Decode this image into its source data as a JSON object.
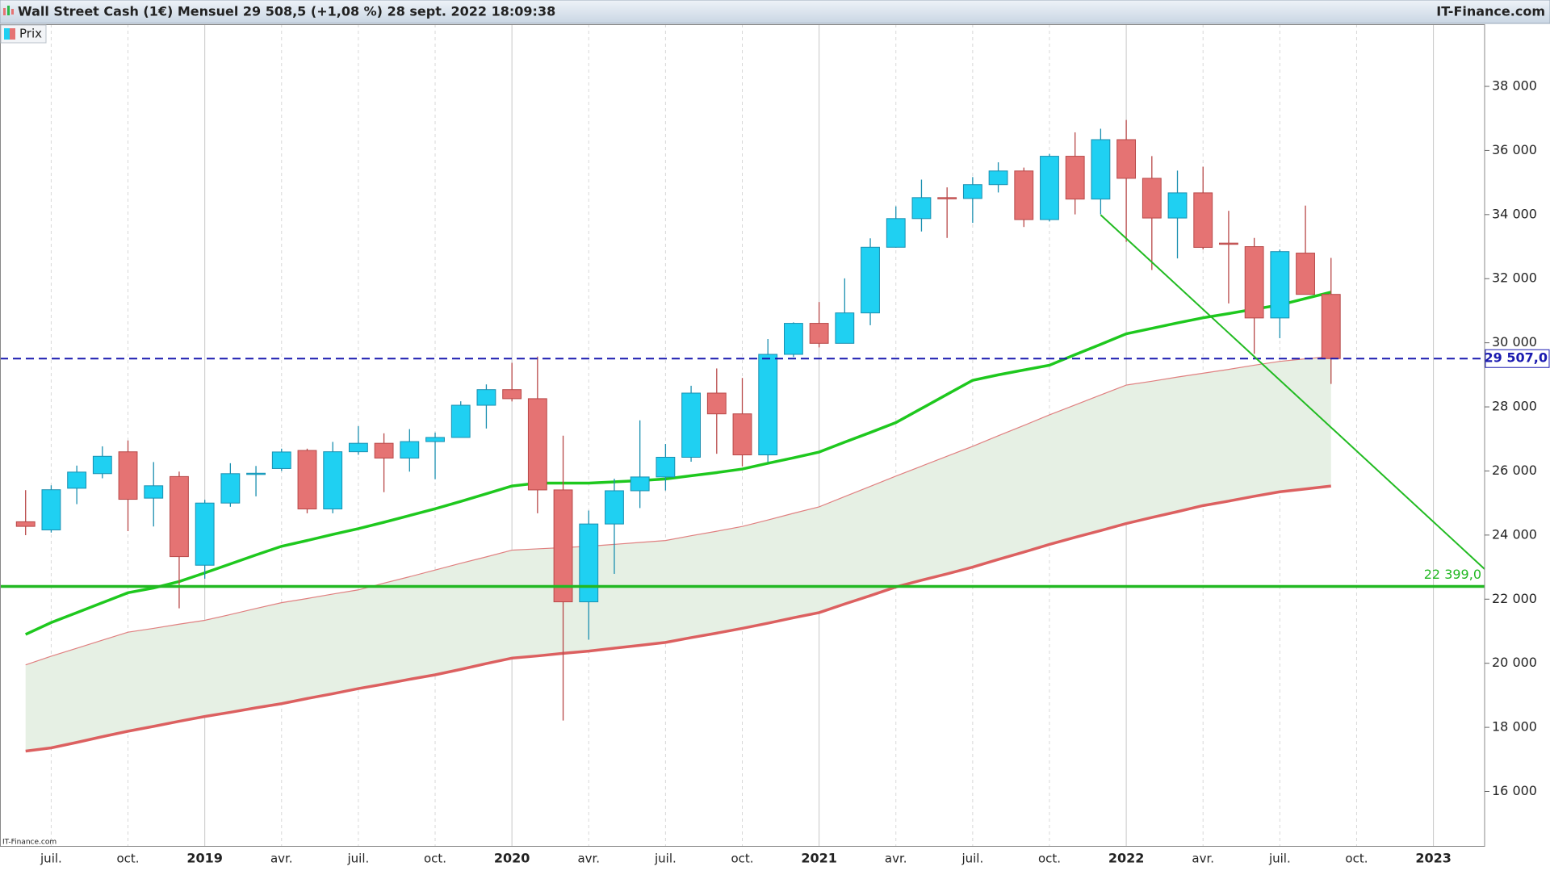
{
  "chart_data": {
    "type": "candlestick",
    "title": "Wall Street Cash (1€) Mensuel 29 508,5 (+1,08 %) 28 sept. 2022 18:09:38",
    "source": "IT-Finance.com",
    "watermark": "IT-Finance.com",
    "legend": "Prix",
    "up_color": "#1fd0f2",
    "up_border": "#1a8fb0",
    "down_color": "#e57373",
    "down_border": "#b84848",
    "x": [
      "2018-06",
      "2018-07",
      "2018-08",
      "2018-09",
      "2018-10",
      "2018-11",
      "2018-12",
      "2019-01",
      "2019-02",
      "2019-03",
      "2019-04",
      "2019-05",
      "2019-06",
      "2019-07",
      "2019-08",
      "2019-09",
      "2019-10",
      "2019-11",
      "2019-12",
      "2020-01",
      "2020-02",
      "2020-03",
      "2020-04",
      "2020-05",
      "2020-06",
      "2020-07",
      "2020-08",
      "2020-09",
      "2020-10",
      "2020-11",
      "2020-12",
      "2021-01",
      "2021-02",
      "2021-03",
      "2021-04",
      "2021-05",
      "2021-06",
      "2021-07",
      "2021-08",
      "2021-09",
      "2021-10",
      "2021-11",
      "2021-12",
      "2022-01",
      "2022-02",
      "2022-03",
      "2022-04",
      "2022-05",
      "2022-06",
      "2022-07",
      "2022-08",
      "2022-09"
    ],
    "open": [
      24415,
      24161,
      25461,
      25917,
      26598,
      25152,
      25826,
      23059,
      24999,
      25916,
      26076,
      26640,
      24815,
      26600,
      26864,
      26403,
      26917,
      27046,
      28051,
      28538,
      28256,
      25409,
      21917,
      24346,
      25383,
      25813,
      26428,
      28430,
      27782,
      26502,
      29639,
      30606,
      29983,
      30932,
      32981,
      33875,
      34529,
      34503,
      34935,
      35361,
      33844,
      35820,
      34484,
      36338,
      35132,
      33893,
      34678,
      33110,
      33000,
      30775,
      32798,
      31510
    ],
    "high": [
      25402,
      25552,
      26168,
      26769,
      26952,
      26278,
      25980,
      25100,
      26242,
      26156,
      26696,
      26696,
      26907,
      27398,
      27175,
      27306,
      27199,
      28175,
      28701,
      29374,
      29568,
      27102,
      24764,
      25758,
      27580,
      26841,
      28659,
      29199,
      28902,
      30116,
      30637,
      31272,
      32010,
      33259,
      34257,
      35091,
      34849,
      35171,
      35631,
      35467,
      35892,
      36566,
      36679,
      36953,
      35824,
      35372,
      35492,
      34117,
      33272,
      32910,
      34281,
      32650
    ],
    "low": [
      23997,
      24078,
      24965,
      25772,
      24123,
      24268,
      21713,
      22638,
      24883,
      25208,
      25999,
      24680,
      24680,
      26504,
      25339,
      25979,
      25743,
      27046,
      27325,
      28170,
      24681,
      18214,
      20735,
      22789,
      24843,
      25391,
      26289,
      26537,
      26143,
      26277,
      29556,
      29856,
      29983,
      30548,
      32967,
      33473,
      33271,
      33741,
      34690,
      33613,
      33785,
      34006,
      34006,
      33150,
      32272,
      32632,
      32913,
      31228,
      29653,
      30143,
      31530,
      28715
    ],
    "close": [
      24271,
      25415,
      25965,
      26458,
      25116,
      25538,
      23327,
      24999,
      25916,
      25929,
      26593,
      24815,
      26600,
      26864,
      26403,
      26917,
      27046,
      28051,
      28538,
      28256,
      25409,
      21917,
      24346,
      25383,
      25813,
      26428,
      28430,
      27782,
      26502,
      29639,
      30606,
      29983,
      30932,
      32981,
      33875,
      34529,
      34503,
      34935,
      35361,
      33844,
      35820,
      34484,
      36338,
      35132,
      33893,
      34678,
      32977,
      33090,
      30775,
      32845,
      31510,
      29507
    ],
    "moving_average": {
      "color": "#1ec81e",
      "width": 3.5,
      "values": [
        20900,
        21270,
        21580,
        21890,
        22200,
        22350,
        22550,
        22820,
        23100,
        23380,
        23650,
        23830,
        24020,
        24200,
        24400,
        24610,
        24820,
        25050,
        25290,
        25530,
        25620,
        25620,
        25620,
        25660,
        25700,
        25750,
        25850,
        25950,
        26060,
        26240,
        26410,
        26590,
        26900,
        27200,
        27510,
        27950,
        28390,
        28830,
        29000,
        29150,
        29300,
        29630,
        29950,
        30280,
        30450,
        30620,
        30780,
        30910,
        31050,
        31180,
        31380,
        31580
      ]
    },
    "envelope": {
      "color": "#e6f0e4",
      "upper": {
        "color": "#e08080",
        "width": 1.2,
        "values": [
          19950,
          20220,
          20470,
          20720,
          20970,
          21090,
          21220,
          21340,
          21520,
          21710,
          21890,
          22020,
          22160,
          22290,
          22500,
          22700,
          22910,
          23120,
          23320,
          23530,
          23570,
          23610,
          23650,
          23710,
          23770,
          23830,
          23980,
          24120,
          24270,
          24470,
          24680,
          24880,
          25200,
          25520,
          25840,
          26150,
          26460,
          26770,
          27100,
          27420,
          27750,
          28060,
          28370,
          28680,
          28800,
          28930,
          29050,
          29170,
          29300,
          29420,
          29500,
          29570
        ]
      },
      "lower": {
        "color": "#dc6060",
        "width": 3.5,
        "values": [
          17260,
          17360,
          17530,
          17710,
          17880,
          18030,
          18190,
          18340,
          18470,
          18610,
          18740,
          18900,
          19050,
          19210,
          19350,
          19500,
          19640,
          19810,
          19990,
          20160,
          20230,
          20310,
          20380,
          20470,
          20560,
          20650,
          20800,
          20940,
          21090,
          21250,
          21420,
          21580,
          21850,
          22110,
          22380,
          22590,
          22790,
          23000,
          23240,
          23470,
          23710,
          23930,
          24140,
          24360,
          24550,
          24730,
          24920,
          25060,
          25210,
          25350,
          25440,
          25530
        ]
      }
    },
    "trendline": {
      "color": "#22bb22",
      "x": [
        "2021-12",
        "2023-03"
      ],
      "values": [
        33990,
        22940
      ]
    },
    "levels": [
      {
        "value": 29507,
        "label": "29 507,0",
        "color": "#1a1ab0",
        "style": "dashed"
      },
      {
        "value": 22399,
        "label": "22 399,0",
        "color": "#22b822",
        "style": "solid"
      }
    ],
    "xlim": [
      "2018-05",
      "2023-03"
    ],
    "xticks": [
      {
        "value": "2018-07",
        "label": "juil."
      },
      {
        "value": "2018-10",
        "label": "oct."
      },
      {
        "value": "2019-01",
        "label": "2019"
      },
      {
        "value": "2019-04",
        "label": "avr."
      },
      {
        "value": "2019-07",
        "label": "juil."
      },
      {
        "value": "2019-10",
        "label": "oct."
      },
      {
        "value": "2020-01",
        "label": "2020"
      },
      {
        "value": "2020-04",
        "label": "avr."
      },
      {
        "value": "2020-07",
        "label": "juil."
      },
      {
        "value": "2020-10",
        "label": "oct."
      },
      {
        "value": "2021-01",
        "label": "2021"
      },
      {
        "value": "2021-04",
        "label": "avr."
      },
      {
        "value": "2021-07",
        "label": "juil."
      },
      {
        "value": "2021-10",
        "label": "oct."
      },
      {
        "value": "2022-01",
        "label": "2022"
      },
      {
        "value": "2022-04",
        "label": "avr."
      },
      {
        "value": "2022-07",
        "label": "juil."
      },
      {
        "value": "2022-10",
        "label": "oct."
      },
      {
        "value": "2023-01",
        "label": "2023"
      }
    ],
    "ylim": [
      14300,
      39940
    ],
    "yticks": [
      {
        "value": 16000,
        "label": "16 000"
      },
      {
        "value": 18000,
        "label": "18 000"
      },
      {
        "value": 20000,
        "label": "20 000"
      },
      {
        "value": 22000,
        "label": "22 000"
      },
      {
        "value": 24000,
        "label": "24 000"
      },
      {
        "value": 26000,
        "label": "26 000"
      },
      {
        "value": 28000,
        "label": "28 000"
      },
      {
        "value": 30000,
        "label": "30 000"
      },
      {
        "value": 32000,
        "label": "32 000"
      },
      {
        "value": 34000,
        "label": "34 000"
      },
      {
        "value": 36000,
        "label": "36 000"
      },
      {
        "value": 38000,
        "label": "38 000"
      }
    ]
  }
}
